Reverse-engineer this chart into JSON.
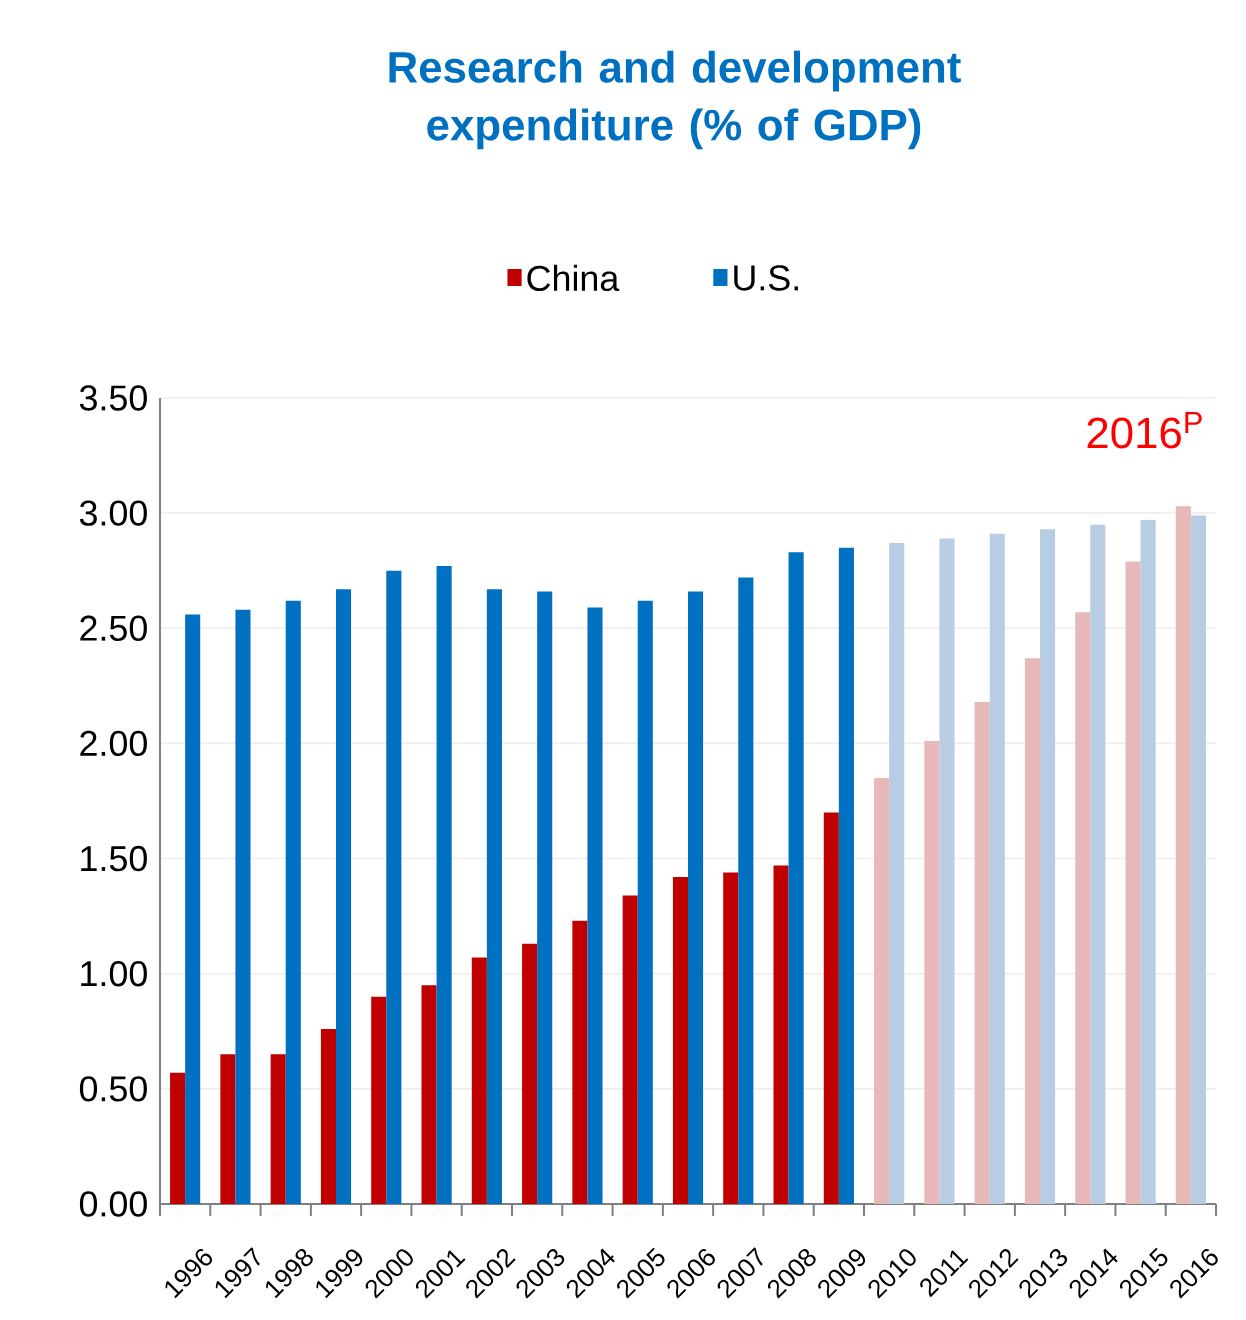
{
  "chart_data": {
    "type": "bar",
    "title": "Research and development expenditure (% of GDP)",
    "categories": [
      "1996",
      "1997",
      "1998",
      "1999",
      "2000",
      "2001",
      "2002",
      "2003",
      "2004",
      "2005",
      "2006",
      "2007",
      "2008",
      "2009",
      "2010",
      "2011",
      "2012",
      "2013",
      "2014",
      "2015",
      "2016"
    ],
    "series": [
      {
        "name": "China",
        "color": "#c00000",
        "colors": [
          "#c00000",
          "#c00000",
          "#c00000",
          "#c00000",
          "#c00000",
          "#c00000",
          "#c00000",
          "#c00000",
          "#c00000",
          "#c00000",
          "#c00000",
          "#c00000",
          "#c00000",
          "#c00000",
          "#e6b8b7",
          "#e6b8b7",
          "#e6b8b7",
          "#e6b8b7",
          "#e6b8b7",
          "#e6b8b7",
          "#e6b8b7"
        ],
        "values": [
          0.57,
          0.65,
          0.65,
          0.76,
          0.9,
          0.95,
          1.07,
          1.13,
          1.23,
          1.34,
          1.42,
          1.44,
          1.47,
          1.7,
          1.85,
          2.01,
          2.18,
          2.37,
          2.57,
          2.79,
          3.03
        ]
      },
      {
        "name": "U.S.",
        "color": "#0070c0",
        "colors": [
          "#0070c0",
          "#0070c0",
          "#0070c0",
          "#0070c0",
          "#0070c0",
          "#0070c0",
          "#0070c0",
          "#0070c0",
          "#0070c0",
          "#0070c0",
          "#0070c0",
          "#0070c0",
          "#0070c0",
          "#0070c0",
          "#b8cce4",
          "#b8cce4",
          "#b8cce4",
          "#b8cce4",
          "#b8cce4",
          "#b8cce4",
          "#b8cce4"
        ],
        "values": [
          2.56,
          2.58,
          2.62,
          2.67,
          2.75,
          2.77,
          2.67,
          2.66,
          2.59,
          2.62,
          2.66,
          2.72,
          2.83,
          2.85,
          2.87,
          2.89,
          2.91,
          2.93,
          2.95,
          2.97,
          2.99
        ]
      }
    ],
    "ylim": [
      0,
      3.5
    ],
    "yticks": [
      {
        "value": 0,
        "label": "0.00"
      },
      {
        "value": 0.5,
        "label": "0.50"
      },
      {
        "value": 1,
        "label": "1.00"
      },
      {
        "value": 1.5,
        "label": "1.50"
      },
      {
        "value": 2,
        "label": "2.00"
      },
      {
        "value": 2.5,
        "label": "2.50"
      },
      {
        "value": 3,
        "label": "3.00"
      },
      {
        "value": 3.5,
        "label": "3.50"
      }
    ],
    "grid": "y",
    "legend": "top",
    "annotations": [
      "2016$^{P}$"
    ]
  }
}
